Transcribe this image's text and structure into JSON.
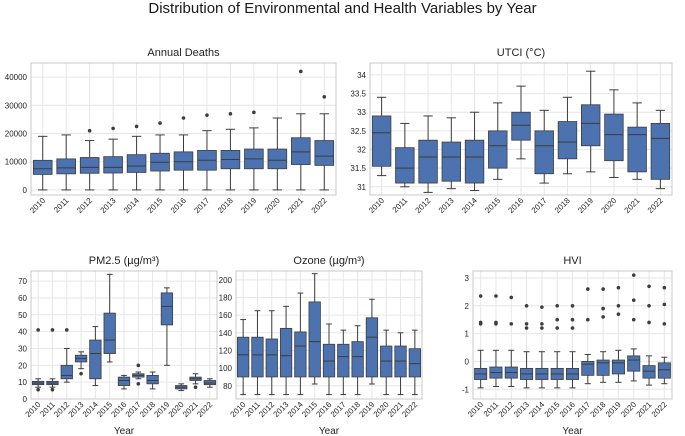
{
  "title": "Distribution of Environmental and Health Variables by Year",
  "style": {
    "box_fill": "#4c72b0",
    "line": "#3d3d3d",
    "grid": "#e6e6e6",
    "frame": "#c8c8c8",
    "text": "#1f1f1f"
  },
  "chart_data": [
    {
      "type": "boxplot",
      "title": "Annual Deaths",
      "xlabel": "",
      "ylabel": "",
      "ylim": [
        -1800,
        45000
      ],
      "yticks": [
        0,
        10000,
        20000,
        30000,
        40000
      ],
      "categories": [
        "2010",
        "2011",
        "2012",
        "2013",
        "2014",
        "2015",
        "2016",
        "2017",
        "2018",
        "2019",
        "2020",
        "2021",
        "2022"
      ],
      "boxes": [
        {
          "min": 0,
          "q1": 5500,
          "median": 7500,
          "q3": 10500,
          "max": 19000,
          "outliers": []
        },
        {
          "min": 0,
          "q1": 5700,
          "median": 7800,
          "q3": 11000,
          "max": 19500,
          "outliers": []
        },
        {
          "min": 0,
          "q1": 5900,
          "median": 8000,
          "q3": 11500,
          "max": 17500,
          "outliers": [
            21000
          ]
        },
        {
          "min": 0,
          "q1": 6000,
          "median": 8000,
          "q3": 11800,
          "max": 18000,
          "outliers": [
            21800
          ]
        },
        {
          "min": 0,
          "q1": 6200,
          "median": 8500,
          "q3": 12500,
          "max": 19000,
          "outliers": [
            22500
          ]
        },
        {
          "min": 0,
          "q1": 6700,
          "median": 9800,
          "q3": 13000,
          "max": 19500,
          "outliers": [
            23700
          ]
        },
        {
          "min": 0,
          "q1": 7000,
          "median": 10000,
          "q3": 13500,
          "max": 19500,
          "outliers": [
            25500
          ]
        },
        {
          "min": 0,
          "q1": 7000,
          "median": 10500,
          "q3": 14000,
          "max": 21000,
          "outliers": [
            26500
          ]
        },
        {
          "min": 0,
          "q1": 7500,
          "median": 10800,
          "q3": 14000,
          "max": 21500,
          "outliers": [
            27000
          ]
        },
        {
          "min": 0,
          "q1": 7500,
          "median": 11000,
          "q3": 14500,
          "max": 22000,
          "outliers": [
            27500
          ]
        },
        {
          "min": 0,
          "q1": 7500,
          "median": 10500,
          "q3": 14500,
          "max": 25500,
          "outliers": []
        },
        {
          "min": 0,
          "q1": 9000,
          "median": 13500,
          "q3": 18500,
          "max": 27000,
          "outliers": [
            42000
          ]
        },
        {
          "min": 0,
          "q1": 8700,
          "median": 12000,
          "q3": 17500,
          "max": 27000,
          "outliers": [
            33000
          ]
        }
      ]
    },
    {
      "type": "boxplot",
      "title": "UTCI (°C)",
      "xlabel": "",
      "ylabel": "",
      "ylim": [
        30.78,
        34.32
      ],
      "yticks": [
        31.0,
        31.5,
        32.0,
        32.5,
        33.0,
        33.5,
        34.0
      ],
      "categories": [
        "2010",
        "2011",
        "2012",
        "2013",
        "2014",
        "2015",
        "2016",
        "2017",
        "2018",
        "2019",
        "2020",
        "2021",
        "2022"
      ],
      "boxes": [
        {
          "min": 31.3,
          "q1": 31.55,
          "median": 32.45,
          "q3": 32.9,
          "max": 33.4,
          "outliers": []
        },
        {
          "min": 31.0,
          "q1": 31.1,
          "median": 31.5,
          "q3": 32.05,
          "max": 32.7,
          "outliers": []
        },
        {
          "min": 30.85,
          "q1": 31.1,
          "median": 31.8,
          "q3": 32.25,
          "max": 32.9,
          "outliers": []
        },
        {
          "min": 30.95,
          "q1": 31.15,
          "median": 31.8,
          "q3": 32.2,
          "max": 32.85,
          "outliers": []
        },
        {
          "min": 30.9,
          "q1": 31.1,
          "median": 31.8,
          "q3": 32.25,
          "max": 33.0,
          "outliers": []
        },
        {
          "min": 31.2,
          "q1": 31.5,
          "median": 32.1,
          "q3": 32.5,
          "max": 33.25,
          "outliers": []
        },
        {
          "min": 31.75,
          "q1": 32.25,
          "median": 32.65,
          "q3": 33.0,
          "max": 33.7,
          "outliers": []
        },
        {
          "min": 31.1,
          "q1": 31.35,
          "median": 32.1,
          "q3": 32.5,
          "max": 33.05,
          "outliers": []
        },
        {
          "min": 31.35,
          "q1": 31.75,
          "median": 32.2,
          "q3": 32.75,
          "max": 33.4,
          "outliers": []
        },
        {
          "min": 31.4,
          "q1": 32.1,
          "median": 32.7,
          "q3": 33.2,
          "max": 34.1,
          "outliers": []
        },
        {
          "min": 31.25,
          "q1": 31.7,
          "median": 32.4,
          "q3": 32.95,
          "max": 33.6,
          "outliers": []
        },
        {
          "min": 31.2,
          "q1": 31.4,
          "median": 32.4,
          "q3": 32.6,
          "max": 33.25,
          "outliers": []
        },
        {
          "min": 30.95,
          "q1": 31.2,
          "median": 32.3,
          "q3": 32.7,
          "max": 33.05,
          "outliers": []
        }
      ]
    },
    {
      "type": "boxplot",
      "title": "PM2.5 (µg/m³)",
      "xlabel": "Year",
      "ylabel": "",
      "ylim": [
        0,
        76
      ],
      "yticks": [
        0,
        10,
        20,
        30,
        40,
        50,
        60,
        70
      ],
      "categories": [
        "2010",
        "2011",
        "2012",
        "2013",
        "2014",
        "2015",
        "2016",
        "2017",
        "2018",
        "2019",
        "2020",
        "2021",
        "2022"
      ],
      "boxes": [
        {
          "min": 7,
          "q1": 8.5,
          "median": 9.5,
          "q3": 10.5,
          "max": 12,
          "outliers": [
            5.5,
            41
          ]
        },
        {
          "min": 7,
          "q1": 8.5,
          "median": 9.5,
          "q3": 10.5,
          "max": 12,
          "outliers": [
            5.5,
            41
          ]
        },
        {
          "min": 10,
          "q1": 12,
          "median": 14,
          "q3": 20,
          "max": 30,
          "outliers": [
            41
          ]
        },
        {
          "min": 18,
          "q1": 22,
          "median": 24,
          "q3": 26,
          "max": 28,
          "outliers": [
            15
          ]
        },
        {
          "min": 8,
          "q1": 12,
          "median": 27,
          "q3": 35,
          "max": 43,
          "outliers": []
        },
        {
          "min": 22,
          "q1": 27,
          "median": 35,
          "q3": 51,
          "max": 74,
          "outliers": []
        },
        {
          "min": 6,
          "q1": 8,
          "median": 11,
          "q3": 13,
          "max": 14,
          "outliers": []
        },
        {
          "min": 12,
          "q1": 13,
          "median": 14,
          "q3": 15,
          "max": 16,
          "outliers": [
            9,
            20
          ]
        },
        {
          "min": 6,
          "q1": 9,
          "median": 11,
          "q3": 14,
          "max": 16,
          "outliers": []
        },
        {
          "min": 20,
          "q1": 44,
          "median": 55,
          "q3": 63,
          "max": 66,
          "outliers": []
        },
        {
          "min": 5,
          "q1": 6,
          "median": 7,
          "q3": 8,
          "max": 9,
          "outliers": []
        },
        {
          "min": 9,
          "q1": 11,
          "median": 12,
          "q3": 13,
          "max": 15,
          "outliers": [
            7
          ]
        },
        {
          "min": 7,
          "q1": 8.5,
          "median": 9.5,
          "q3": 11,
          "max": 12,
          "outliers": []
        }
      ]
    },
    {
      "type": "boxplot",
      "title": "Ozone (µg/m³)",
      "xlabel": "Year",
      "ylabel": "",
      "ylim": [
        65,
        210
      ],
      "yticks": [
        80,
        100,
        120,
        140,
        160,
        180,
        200
      ],
      "categories": [
        "2010",
        "2011",
        "2012",
        "2013",
        "2014",
        "2015",
        "2016",
        "2017",
        "2018",
        "2019",
        "2020",
        "2021",
        "2022"
      ],
      "boxes": [
        {
          "min": 70,
          "q1": 90,
          "median": 115,
          "q3": 135,
          "max": 155,
          "outliers": []
        },
        {
          "min": 70,
          "q1": 90,
          "median": 115,
          "q3": 135,
          "max": 165,
          "outliers": []
        },
        {
          "min": 70,
          "q1": 90,
          "median": 115,
          "q3": 133,
          "max": 165,
          "outliers": []
        },
        {
          "min": 70,
          "q1": 90,
          "median": 114,
          "q3": 145,
          "max": 170,
          "outliers": []
        },
        {
          "min": 70,
          "q1": 90,
          "median": 125,
          "q3": 141,
          "max": 185,
          "outliers": []
        },
        {
          "min": 82,
          "q1": 90,
          "median": 130,
          "q3": 175,
          "max": 207,
          "outliers": []
        },
        {
          "min": 70,
          "q1": 90,
          "median": 108,
          "q3": 127,
          "max": 150,
          "outliers": []
        },
        {
          "min": 70,
          "q1": 90,
          "median": 113,
          "q3": 127,
          "max": 143,
          "outliers": []
        },
        {
          "min": 70,
          "q1": 90,
          "median": 113,
          "q3": 130,
          "max": 148,
          "outliers": []
        },
        {
          "min": 82,
          "q1": 90,
          "median": 135,
          "q3": 157,
          "max": 178,
          "outliers": []
        },
        {
          "min": 70,
          "q1": 90,
          "median": 108,
          "q3": 125,
          "max": 143,
          "outliers": []
        },
        {
          "min": 70,
          "q1": 90,
          "median": 108,
          "q3": 125,
          "max": 140,
          "outliers": []
        },
        {
          "min": 70,
          "q1": 90,
          "median": 105,
          "q3": 122,
          "max": 143,
          "outliers": []
        }
      ]
    },
    {
      "type": "boxplot",
      "title": "HVI",
      "xlabel": "Year",
      "ylabel": "",
      "ylim": [
        -1.35,
        3.25
      ],
      "yticks": [
        -1,
        0,
        1,
        2,
        3
      ],
      "categories": [
        "2010",
        "2011",
        "2012",
        "2013",
        "2014",
        "2015",
        "2016",
        "2017",
        "2018",
        "2019",
        "2020",
        "2021",
        "2022"
      ],
      "boxes": [
        {
          "min": -0.95,
          "q1": -0.65,
          "median": -0.45,
          "q3": -0.25,
          "max": 0.4,
          "outliers": [
            1.35,
            1.4,
            2.35
          ]
        },
        {
          "min": -0.9,
          "q1": -0.6,
          "median": -0.4,
          "q3": -0.2,
          "max": 0.4,
          "outliers": [
            1.35,
            1.4,
            2.35
          ]
        },
        {
          "min": -0.9,
          "q1": -0.6,
          "median": -0.4,
          "q3": -0.2,
          "max": 0.4,
          "outliers": [
            1.35,
            2.3
          ]
        },
        {
          "min": -0.95,
          "q1": -0.65,
          "median": -0.45,
          "q3": -0.25,
          "max": 0.35,
          "outliers": [
            1.2,
            1.35,
            2.0
          ]
        },
        {
          "min": -0.95,
          "q1": -0.65,
          "median": -0.45,
          "q3": -0.25,
          "max": 0.35,
          "outliers": [
            1.2,
            1.35,
            1.95
          ]
        },
        {
          "min": -0.95,
          "q1": -0.65,
          "median": -0.45,
          "q3": -0.25,
          "max": 0.35,
          "outliers": [
            1.2,
            1.5,
            2.0
          ]
        },
        {
          "min": -0.95,
          "q1": -0.65,
          "median": -0.45,
          "q3": -0.25,
          "max": 0.35,
          "outliers": [
            1.2,
            1.5,
            2.0
          ]
        },
        {
          "min": -0.8,
          "q1": -0.5,
          "median": -0.1,
          "q3": 0.0,
          "max": 0.25,
          "outliers": [
            1.5,
            2.6
          ]
        },
        {
          "min": -0.75,
          "q1": -0.5,
          "median": -0.05,
          "q3": 0.05,
          "max": 0.35,
          "outliers": [
            1.6,
            1.9,
            2.6
          ]
        },
        {
          "min": -0.75,
          "q1": -0.45,
          "median": -0.05,
          "q3": 0.05,
          "max": 0.4,
          "outliers": [
            1.7,
            2.0,
            2.65
          ]
        },
        {
          "min": -0.7,
          "q1": -0.35,
          "median": 0.05,
          "q3": 0.2,
          "max": 0.45,
          "outliers": [
            1.5,
            2.2,
            3.1
          ]
        },
        {
          "min": -0.85,
          "q1": -0.6,
          "median": -0.35,
          "q3": -0.15,
          "max": 0.2,
          "outliers": [
            1.4,
            2.0,
            2.7
          ]
        },
        {
          "min": -0.8,
          "q1": -0.6,
          "median": -0.3,
          "q3": -0.05,
          "max": 0.15,
          "outliers": [
            1.35,
            2.05,
            2.65
          ]
        }
      ]
    }
  ]
}
